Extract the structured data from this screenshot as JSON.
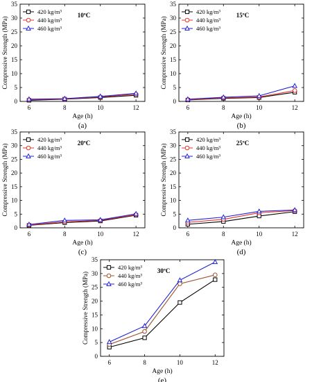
{
  "chart_data": [
    {
      "type": "line",
      "panel_label": "(a)",
      "annotation": "10ºC",
      "xlabel": "Age (h)",
      "ylabel": "Compressive Strength (MPa)",
      "x": [
        6,
        8,
        10,
        12
      ],
      "xticks": [
        6,
        8,
        10,
        12
      ],
      "xlim": [
        5.5,
        12.5
      ],
      "ylim": [
        0,
        35
      ],
      "yticks": [
        0,
        5,
        10,
        15,
        20,
        25,
        30,
        35
      ],
      "legend_position": "top-left",
      "series": [
        {
          "name": "420 kg/m³",
          "color": "#000000",
          "marker": "square",
          "values": [
            0.4,
            0.8,
            1.4,
            2.2
          ]
        },
        {
          "name": "440 kg/m³",
          "color": "#e8332a",
          "marker": "circle",
          "values": [
            0.6,
            0.9,
            1.6,
            2.6
          ]
        },
        {
          "name": "460 kg/m³",
          "color": "#1f1fd6",
          "marker": "triangle",
          "values": [
            0.8,
            1.0,
            1.8,
            2.9
          ]
        }
      ]
    },
    {
      "type": "line",
      "panel_label": "(b)",
      "annotation": "15ºC",
      "xlabel": "Age (h)",
      "ylabel": "Compressive Strength (MPa)",
      "x": [
        6,
        8,
        10,
        12
      ],
      "xticks": [
        6,
        8,
        10,
        12
      ],
      "xlim": [
        5.5,
        12.5
      ],
      "ylim": [
        0,
        35
      ],
      "yticks": [
        0,
        5,
        10,
        15,
        20,
        25,
        30,
        35
      ],
      "legend_position": "top-left",
      "series": [
        {
          "name": "420 kg/m³",
          "color": "#000000",
          "marker": "square",
          "values": [
            0.5,
            1.1,
            1.4,
            3.3
          ]
        },
        {
          "name": "440 kg/m³",
          "color": "#e8332a",
          "marker": "circle",
          "values": [
            0.6,
            1.3,
            1.6,
            3.9
          ]
        },
        {
          "name": "460 kg/m³",
          "color": "#1f1fd6",
          "marker": "triangle",
          "values": [
            0.8,
            1.5,
            2.0,
            5.6
          ]
        }
      ]
    },
    {
      "type": "line",
      "panel_label": "(c)",
      "annotation": "20ºC",
      "xlabel": "Age (h)",
      "ylabel": "Compressive Strength (MPa)",
      "x": [
        6,
        8,
        10,
        12
      ],
      "xticks": [
        6,
        8,
        10,
        12
      ],
      "xlim": [
        5.5,
        12.5
      ],
      "ylim": [
        0,
        35
      ],
      "yticks": [
        0,
        5,
        10,
        15,
        20,
        25,
        30,
        35
      ],
      "legend_position": "top-left",
      "series": [
        {
          "name": "420 kg/m³",
          "color": "#000000",
          "marker": "square",
          "values": [
            0.9,
            1.9,
            2.5,
            4.6
          ]
        },
        {
          "name": "440 kg/m³",
          "color": "#e8332a",
          "marker": "circle",
          "values": [
            1.0,
            2.2,
            2.7,
            4.8
          ]
        },
        {
          "name": "460 kg/m³",
          "color": "#1f1fd6",
          "marker": "triangle",
          "values": [
            1.2,
            2.7,
            2.9,
            5.1
          ]
        }
      ]
    },
    {
      "type": "line",
      "panel_label": "(d)",
      "annotation": "25ºC",
      "xlabel": "Age (h)",
      "ylabel": "Compressive Strength (MPa)",
      "x": [
        6,
        8,
        10,
        12
      ],
      "xticks": [
        6,
        8,
        10,
        12
      ],
      "xlim": [
        5.5,
        12.5
      ],
      "ylim": [
        0,
        35
      ],
      "yticks": [
        0,
        5,
        10,
        15,
        20,
        25,
        30,
        35
      ],
      "legend_position": "top-left",
      "series": [
        {
          "name": "420 kg/m³",
          "color": "#000000",
          "marker": "square",
          "values": [
            1.3,
            2.3,
            4.3,
            5.9
          ]
        },
        {
          "name": "440 kg/m³",
          "color": "#e8332a",
          "marker": "circle",
          "values": [
            2.0,
            3.1,
            5.5,
            6.3
          ]
        },
        {
          "name": "460 kg/m³",
          "color": "#1f1fd6",
          "marker": "triangle",
          "values": [
            2.7,
            3.9,
            6.0,
            6.5
          ]
        }
      ]
    },
    {
      "type": "line",
      "panel_label": "(e)",
      "annotation": "30ºC",
      "xlabel": "Age (h)",
      "ylabel": "Compressive Strength (MPa)",
      "x": [
        6,
        8,
        10,
        12
      ],
      "xticks": [
        6,
        8,
        10,
        12
      ],
      "xlim": [
        5.5,
        12.5
      ],
      "ylim": [
        0,
        35
      ],
      "yticks": [
        0,
        5,
        10,
        15,
        20,
        25,
        30,
        35
      ],
      "legend_position": "top-left",
      "series": [
        {
          "name": "420 kg/m³",
          "color": "#000000",
          "marker": "square",
          "values": [
            3.3,
            6.7,
            19.5,
            27.8
          ]
        },
        {
          "name": "440 kg/m³",
          "color": "#a0522d",
          "marker": "circle",
          "values": [
            4.3,
            9.0,
            26.3,
            29.5
          ]
        },
        {
          "name": "460 kg/m³",
          "color": "#1f1fd6",
          "marker": "triangle",
          "values": [
            5.2,
            11.0,
            27.6,
            34.2
          ]
        }
      ]
    }
  ]
}
